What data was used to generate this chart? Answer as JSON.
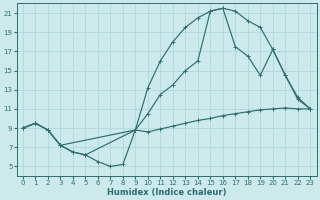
{
  "xlabel": "Humidex (Indice chaleur)",
  "background_color": "#cce9eb",
  "grid_color": "#aad4d8",
  "line_color": "#2d6e6e",
  "xlim": [
    -0.5,
    23.5
  ],
  "ylim": [
    4.0,
    22.0
  ],
  "xticks": [
    0,
    1,
    2,
    3,
    4,
    5,
    6,
    7,
    8,
    9,
    10,
    11,
    12,
    13,
    14,
    15,
    16,
    17,
    18,
    19,
    20,
    21,
    22,
    23
  ],
  "yticks": [
    5,
    7,
    9,
    11,
    13,
    15,
    17,
    19,
    21
  ],
  "curve1_x": [
    0,
    1,
    2,
    3,
    4,
    5,
    6,
    7,
    8,
    9,
    10,
    11,
    12,
    13,
    14,
    15,
    16,
    17,
    18,
    19,
    20,
    21,
    22,
    23
  ],
  "curve1_y": [
    9.0,
    9.5,
    8.8,
    7.2,
    6.5,
    6.2,
    5.5,
    5.0,
    5.2,
    8.8,
    8.6,
    8.9,
    9.2,
    9.5,
    9.8,
    10.0,
    10.3,
    10.5,
    10.7,
    10.9,
    11.0,
    11.1,
    11.0,
    11.0
  ],
  "curve2_x": [
    0,
    1,
    2,
    3,
    4,
    5,
    9,
    10,
    11,
    12,
    13,
    14,
    15,
    16,
    17,
    18,
    19,
    20,
    21,
    22,
    23
  ],
  "curve2_y": [
    9.0,
    9.5,
    8.8,
    7.2,
    6.5,
    6.2,
    8.8,
    13.2,
    16.0,
    18.0,
    19.5,
    20.5,
    21.2,
    21.5,
    21.2,
    20.2,
    19.5,
    17.2,
    14.5,
    12.0,
    11.0
  ],
  "curve3_x": [
    0,
    1,
    2,
    3,
    9,
    10,
    11,
    12,
    13,
    14,
    15,
    16,
    17,
    18,
    19,
    20,
    21,
    22,
    23
  ],
  "curve3_y": [
    9.0,
    9.5,
    8.8,
    7.2,
    8.8,
    10.5,
    12.5,
    13.5,
    15.0,
    16.0,
    21.2,
    21.5,
    17.5,
    16.5,
    14.5,
    17.2,
    14.5,
    12.2,
    11.0
  ]
}
